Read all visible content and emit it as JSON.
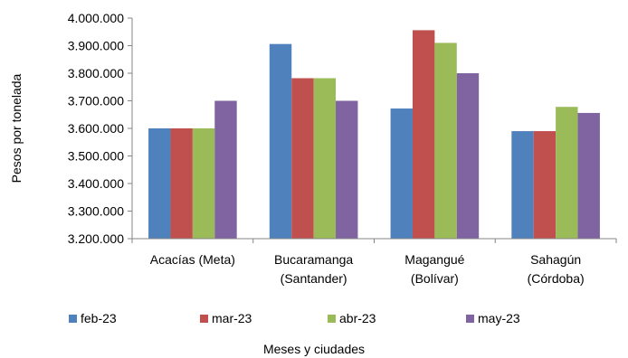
{
  "chart_data": {
    "type": "bar",
    "title": "",
    "xlabel": "Meses y ciudades",
    "ylabel": "Pesos por tonelada",
    "ylim": [
      3200000,
      4000000
    ],
    "y_ticks": [
      3200000,
      3300000,
      3400000,
      3500000,
      3600000,
      3700000,
      3800000,
      3900000,
      4000000
    ],
    "y_tick_labels": [
      "3.200.000",
      "3.300.000",
      "3.400.000",
      "3.500.000",
      "3.600.000",
      "3.700.000",
      "3.800.000",
      "3.900.000",
      "4.000.000"
    ],
    "grid": false,
    "legend_position": "bottom",
    "categories": [
      [
        "Acacías (Meta)"
      ],
      [
        "Bucaramanga",
        "(Santander)"
      ],
      [
        "Magangué",
        "(Bolívar)"
      ],
      [
        "Sahagún",
        "(Córdoba)"
      ]
    ],
    "series": [
      {
        "name": "feb-23",
        "color": "#4F81BD",
        "values": [
          3600000,
          3906000,
          3672000,
          3590000
        ]
      },
      {
        "name": "mar-23",
        "color": "#C0504D",
        "values": [
          3600000,
          3782000,
          3956000,
          3590000
        ]
      },
      {
        "name": "abr-23",
        "color": "#9BBB59",
        "values": [
          3600000,
          3782000,
          3910000,
          3678000
        ]
      },
      {
        "name": "may-23",
        "color": "#8064A2",
        "values": [
          3700000,
          3700000,
          3800000,
          3656000
        ]
      }
    ]
  }
}
